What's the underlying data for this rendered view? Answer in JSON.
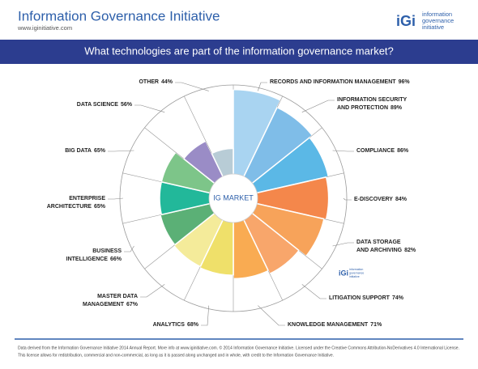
{
  "header": {
    "title": "Information Governance Initiative",
    "url": "www.iginitiative.com",
    "logo_mark": "iGi",
    "logo_lines": [
      "information",
      "governance",
      "initiative"
    ]
  },
  "banner": "What technologies are part of the information governance market?",
  "chart_data": {
    "type": "polar_area",
    "center_label": "IG MARKET",
    "categories": [
      "RECORDS AND INFORMATION MANAGEMENT",
      "INFORMATION SECURITY\nAND PROTECTION",
      "COMPLIANCE",
      "E-DISCOVERY",
      "DATA STORAGE\nAND ARCHIVING",
      "LITIGATION SUPPORT",
      "KNOWLEDGE MANAGEMENT",
      "ANALYTICS",
      "MASTER DATA\nMANAGEMENT",
      "BUSINESS\nINTELLIGENCE",
      "ENTERPRISE\nARCHITECTURE",
      "BIG DATA",
      "DATA SCIENCE",
      "OTHER"
    ],
    "values": [
      96,
      89,
      86,
      84,
      82,
      74,
      71,
      68,
      67,
      66,
      65,
      65,
      56,
      44
    ],
    "value_labels": [
      "96%",
      "89%",
      "86%",
      "84%",
      "82%",
      "74%",
      "71%",
      "68%",
      "67%",
      "66%",
      "65%",
      "65%",
      "56%",
      "44%"
    ],
    "colors": [
      "#a9d4f1",
      "#7fbde8",
      "#5bb8e6",
      "#f4874b",
      "#f7a35a",
      "#f8a66b",
      "#f9ab52",
      "#efe06a",
      "#f4eb9a",
      "#5bb076",
      "#22b89a",
      "#7dc589",
      "#9a8cc6",
      "#b8ccd6"
    ],
    "rlim": [
      0,
      100
    ]
  },
  "footer": [
    "Data derived from the Information Governance Initiative 2014 Annual Report. More info at www.iginitiative.com. © 2014 Information Governance Initiative. Licensed under the Creative Commons Attribution-NoDerivatives 4.0 International License.",
    "This license allows for redistribution, commercial and non-commercial, as long as it is passed along unchanged and in whole, with credit to the Information Governance Initiative."
  ]
}
